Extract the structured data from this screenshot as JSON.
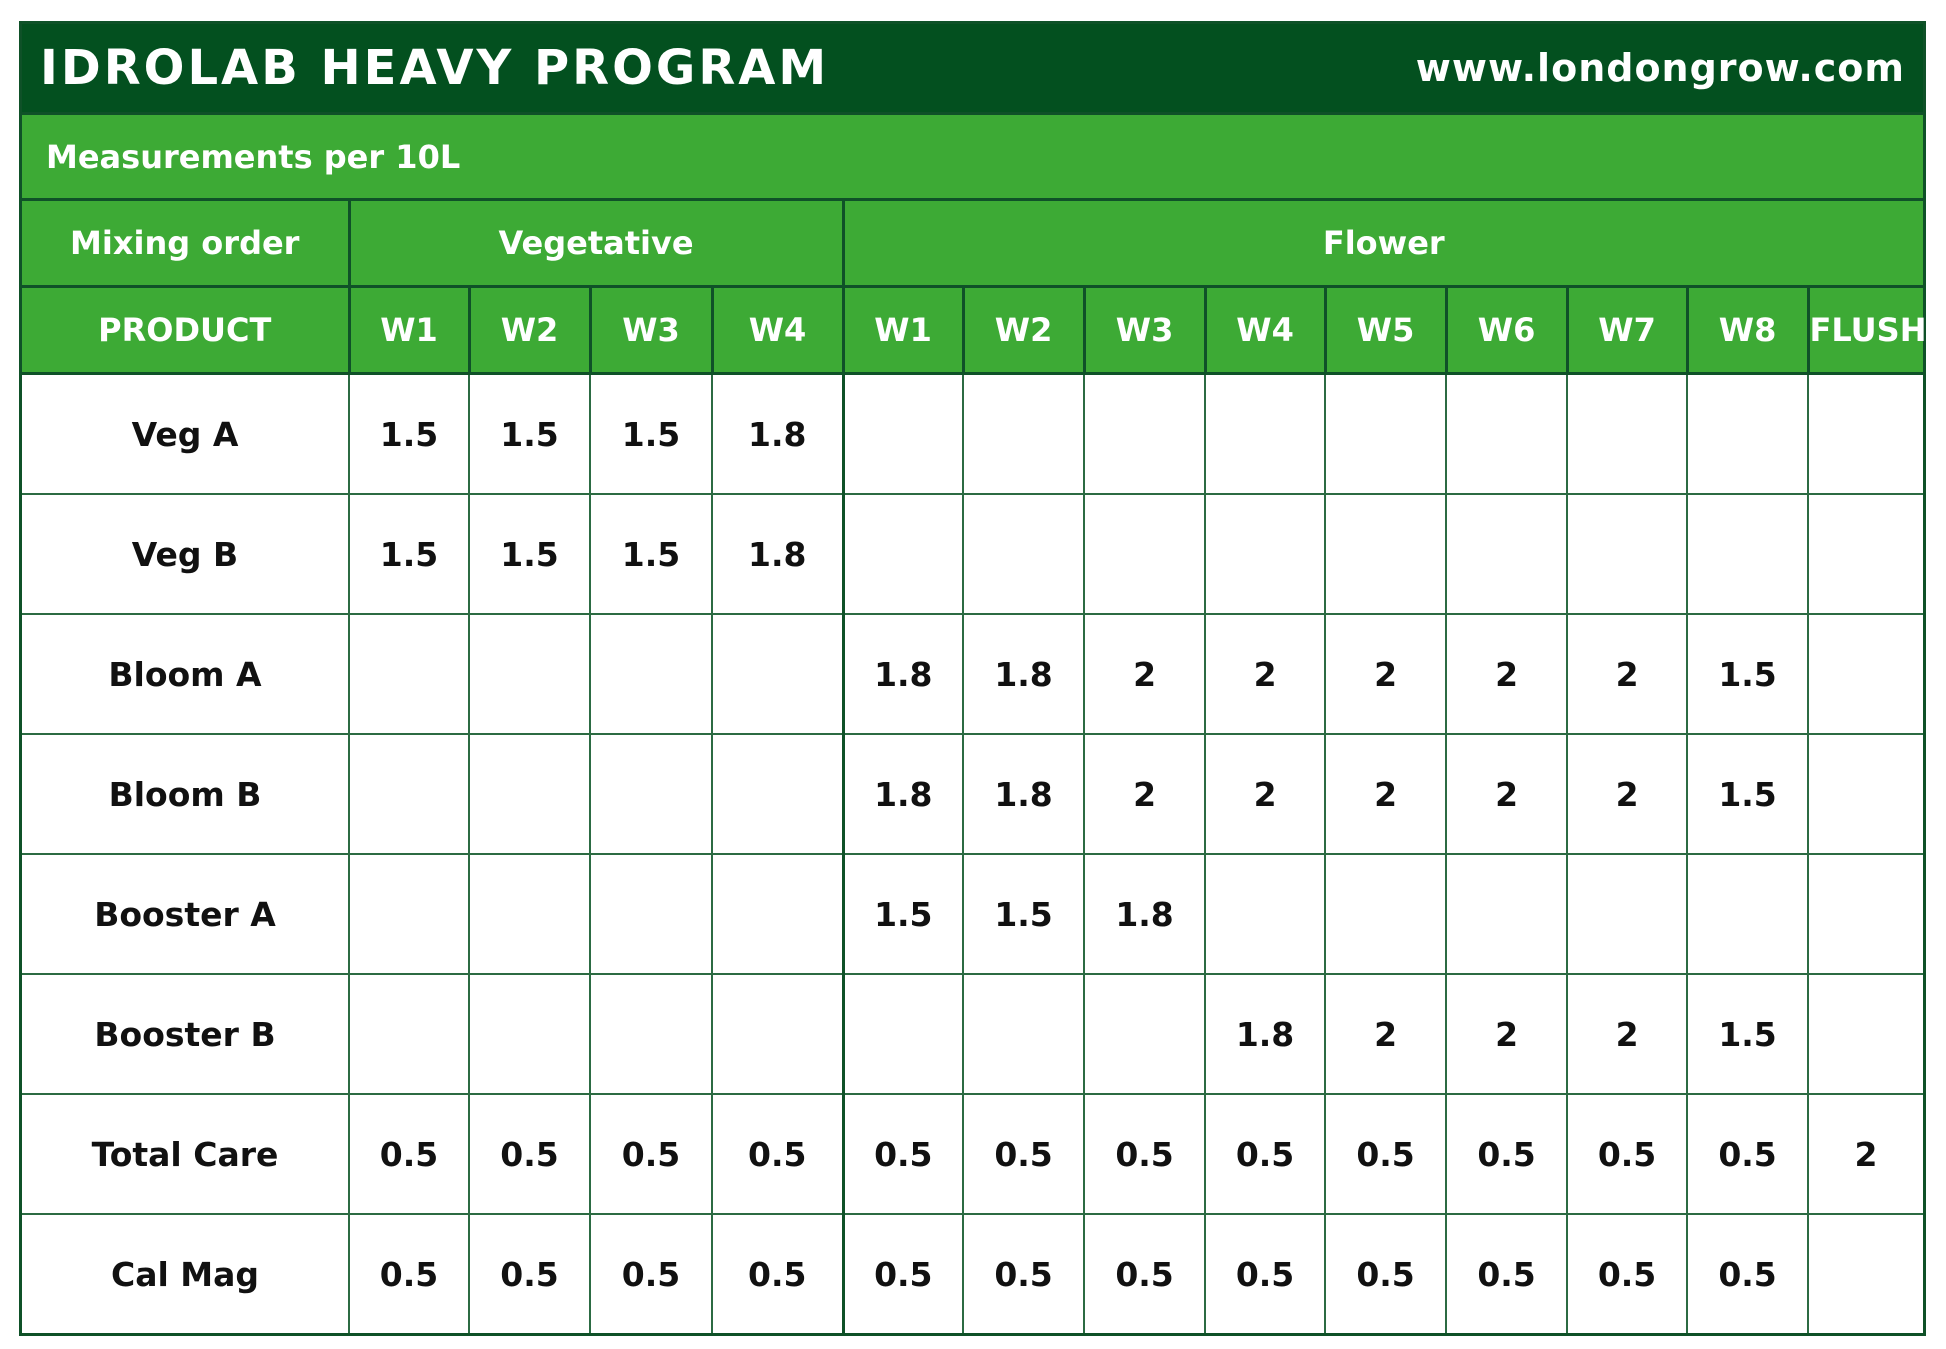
{
  "header": {
    "title": "IDROLAB HEAVY PROGRAM",
    "website": "www.londongrow.com"
  },
  "subtitle": "Measurements per 10L",
  "colors": {
    "dark_green": "#03501f",
    "green": "#3daa35",
    "border": "#0f5128"
  },
  "table": {
    "group_headers": {
      "mixing_order": "Mixing order",
      "vegetative": "Vegetative",
      "flower": "Flower"
    },
    "columns": [
      "PRODUCT",
      "W1",
      "W2",
      "W3",
      "W4",
      "W1",
      "W2",
      "W3",
      "W4",
      "W5",
      "W6",
      "W7",
      "W8",
      "FLUSH"
    ],
    "rows": [
      {
        "product": "Veg A",
        "values": [
          "1.5",
          "1.5",
          "1.5",
          "1.8",
          "",
          "",
          "",
          "",
          "",
          "",
          "",
          "",
          ""
        ]
      },
      {
        "product": "Veg B",
        "values": [
          "1.5",
          "1.5",
          "1.5",
          "1.8",
          "",
          "",
          "",
          "",
          "",
          "",
          "",
          "",
          ""
        ]
      },
      {
        "product": "Bloom A",
        "values": [
          "",
          "",
          "",
          "",
          "1.8",
          "1.8",
          "2",
          "2",
          "2",
          "2",
          "2",
          "1.5",
          ""
        ]
      },
      {
        "product": "Bloom B",
        "values": [
          "",
          "",
          "",
          "",
          "1.8",
          "1.8",
          "2",
          "2",
          "2",
          "2",
          "2",
          "1.5",
          ""
        ]
      },
      {
        "product": "Booster A",
        "values": [
          "",
          "",
          "",
          "",
          "1.5",
          "1.5",
          "1.8",
          "",
          "",
          "",
          "",
          "",
          ""
        ]
      },
      {
        "product": "Booster B",
        "values": [
          "",
          "",
          "",
          "",
          "",
          "",
          "",
          "1.8",
          "2",
          "2",
          "2",
          "1.5",
          ""
        ]
      },
      {
        "product": "Total Care",
        "values": [
          "0.5",
          "0.5",
          "0.5",
          "0.5",
          "0.5",
          "0.5",
          "0.5",
          "0.5",
          "0.5",
          "0.5",
          "0.5",
          "0.5",
          "2"
        ]
      },
      {
        "product": "Cal Mag",
        "values": [
          "0.5",
          "0.5",
          "0.5",
          "0.5",
          "0.5",
          "0.5",
          "0.5",
          "0.5",
          "0.5",
          "0.5",
          "0.5",
          "0.5",
          ""
        ]
      }
    ]
  }
}
